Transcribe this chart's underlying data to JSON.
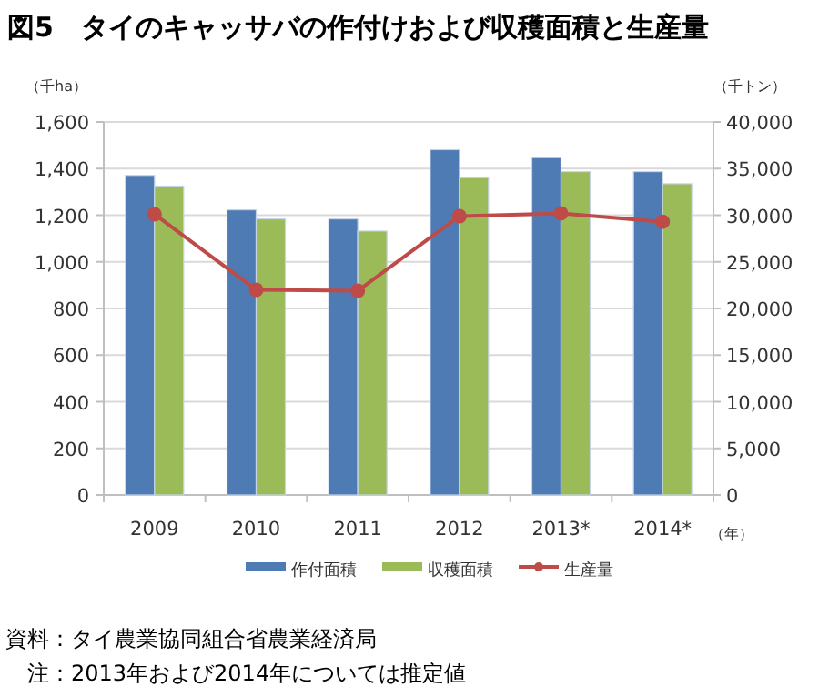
{
  "chart_data": {
    "type": "bar",
    "title": "図5　タイのキャッサバの作付けおよび収穫面積と生産量",
    "ylabel": "（千ha）",
    "y2label": "（千トン）",
    "xlabel": "（年）",
    "categories": [
      "2009",
      "2010",
      "2011",
      "2012",
      "2013*",
      "2014*"
    ],
    "series": [
      {
        "name": "作付面積",
        "color": "#4f7bb4",
        "values": [
          1371,
          1223,
          1184,
          1481,
          1447,
          1387
        ]
      },
      {
        "name": "収穫面積",
        "color": "#9bbb59",
        "values": [
          1325,
          1184,
          1132,
          1361,
          1387,
          1335
        ]
      },
      {
        "name": "生産量",
        "type": "line",
        "axis": "y2",
        "color": "#be4b48",
        "marker": "circle",
        "values": [
          30100,
          22000,
          21900,
          29900,
          30200,
          29300
        ]
      }
    ],
    "ylim": [
      0,
      1600
    ],
    "yticks": [
      {
        "value": 0,
        "label": "0"
      },
      {
        "value": 200,
        "label": "200"
      },
      {
        "value": 400,
        "label": "400"
      },
      {
        "value": 600,
        "label": "600"
      },
      {
        "value": 800,
        "label": "800"
      },
      {
        "value": 1000,
        "label": "1,000"
      },
      {
        "value": 1200,
        "label": "1,200"
      },
      {
        "value": 1400,
        "label": "1,400"
      },
      {
        "value": 1600,
        "label": "1,600"
      }
    ],
    "y2lim": [
      0,
      40000
    ],
    "y2ticks": [
      {
        "value": 0,
        "label": "0"
      },
      {
        "value": 5000,
        "label": "5,000"
      },
      {
        "value": 10000,
        "label": "10,000"
      },
      {
        "value": 15000,
        "label": "15,000"
      },
      {
        "value": 20000,
        "label": "20,000"
      },
      {
        "value": 25000,
        "label": "25,000"
      },
      {
        "value": 30000,
        "label": "30,000"
      },
      {
        "value": 35000,
        "label": "35,000"
      },
      {
        "value": 40000,
        "label": "40,000"
      }
    ],
    "grid": "y",
    "legend": "bottom",
    "annotations": [
      "資料：タイ農業協同組合省農業経済局",
      "注：2013年および2014年については推定値"
    ]
  }
}
